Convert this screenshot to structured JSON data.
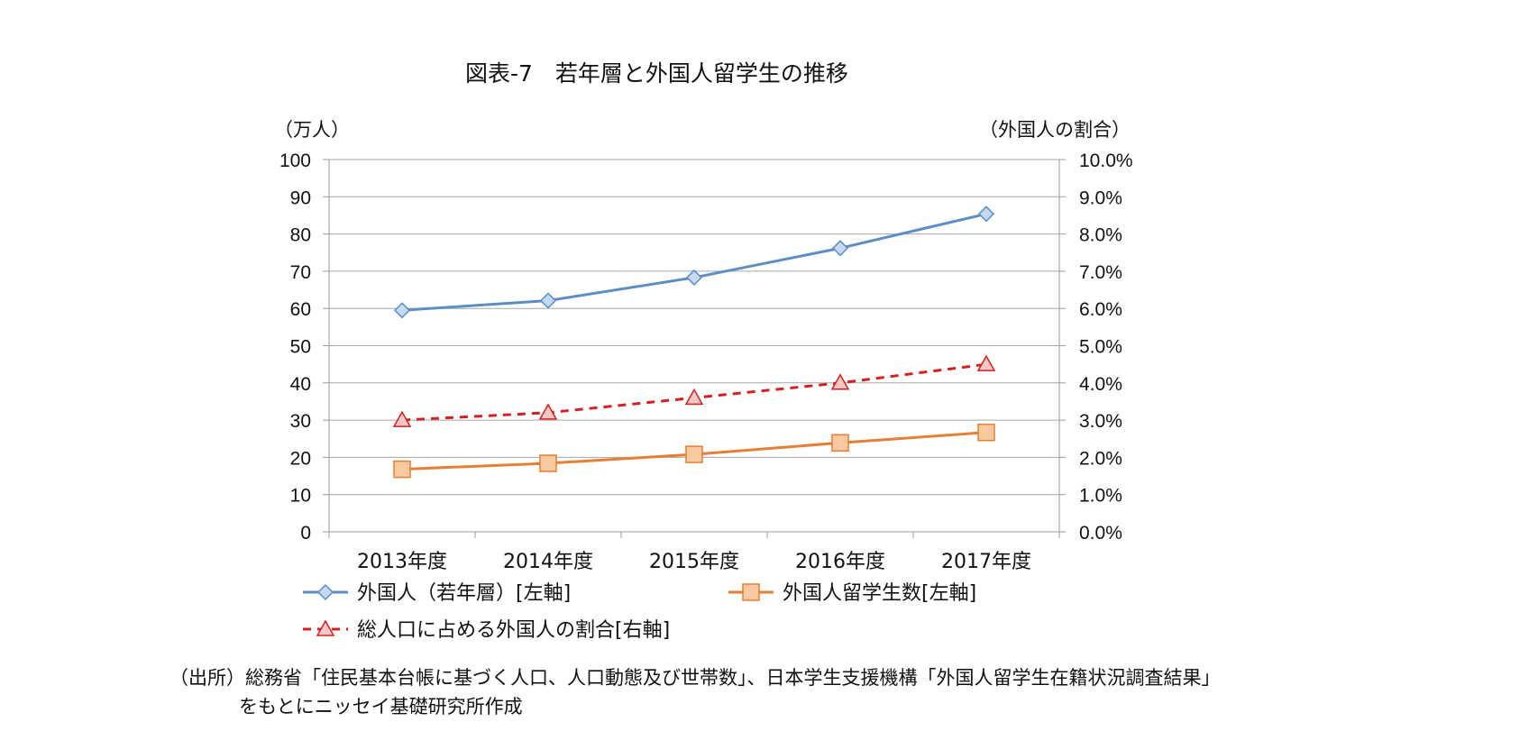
{
  "chart_data": {
    "type": "line",
    "title": "図表-7　若年層と外国人留学生の推移",
    "left_axis_unit": "（万人）",
    "right_axis_unit": "（外国人の割合）",
    "categories": [
      "2013年度",
      "2014年度",
      "2015年度",
      "2016年度",
      "2017年度"
    ],
    "left_ticks": [
      "0",
      "10",
      "20",
      "30",
      "40",
      "50",
      "60",
      "70",
      "80",
      "90",
      "100"
    ],
    "right_ticks": [
      "0.0%",
      "1.0%",
      "2.0%",
      "3.0%",
      "4.0%",
      "5.0%",
      "6.0%",
      "7.0%",
      "8.0%",
      "9.0%",
      "10.0%"
    ],
    "ylim_left": [
      0,
      100
    ],
    "ylim_right": [
      0,
      10
    ],
    "grid": true,
    "legend_position": "bottom",
    "series": [
      {
        "name": "外国人（若年層）[左軸]",
        "axis": "left",
        "marker": "diamond",
        "style": "solid",
        "color": "#5b8ec4",
        "marker_fill": "#c5d9f1",
        "values": [
          59.5,
          62.1,
          68.3,
          76.2,
          85.4
        ]
      },
      {
        "name": "外国人留学生数[左軸]",
        "axis": "left",
        "marker": "square",
        "style": "solid",
        "color": "#e67e33",
        "marker_fill": "#fbc9a0",
        "values": [
          16.8,
          18.4,
          20.8,
          23.9,
          26.7
        ]
      },
      {
        "name": "総人口に占める外国人の割合[右軸]",
        "axis": "right",
        "marker": "triangle",
        "style": "dashed",
        "color": "#d42020",
        "marker_fill": "#f7c6c6",
        "values": [
          3.0,
          3.2,
          3.6,
          4.0,
          4.5
        ]
      }
    ]
  },
  "source_line1": "（出所）総務省「住民基本台帳に基づく人口、人口動態及び世帯数」、日本学生支援機構「外国人留学生在籍状況調査結果」",
  "source_line2": "をもとにニッセイ基礎研究所作成"
}
